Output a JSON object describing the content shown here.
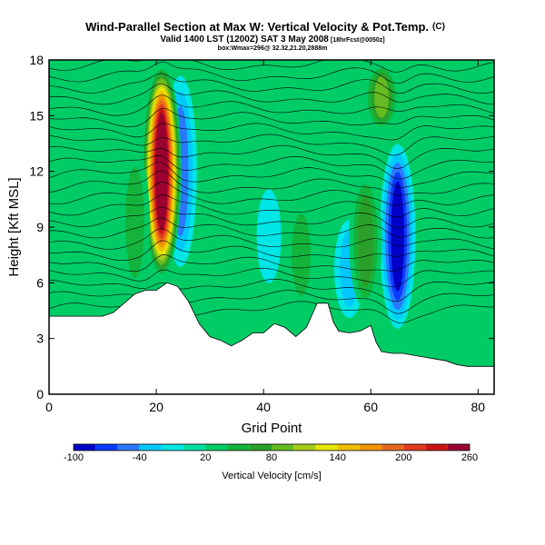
{
  "title": {
    "main": "Wind-Parallel Section at Max W: Vertical Velocity & Pot.Temp.",
    "copyright": "(C)",
    "valid": "Valid 1400 LST (1200Z) SAT 3 May 2008",
    "fcst": "[18hrFcst@0050z]",
    "location": "box:Wmax=296@ 32.32,21.20,2888m"
  },
  "chart_data": {
    "type": "heatmap",
    "title": "Wind-Parallel Section at Max W: Vertical Velocity & Pot.Temp.",
    "xlabel": "Grid Point",
    "ylabel": "Height [Kft MSL]",
    "xlim": [
      0,
      83
    ],
    "ylim": [
      0,
      18
    ],
    "xticks": [
      "0",
      "20",
      "40",
      "60",
      "80"
    ],
    "yticks": [
      "0",
      "3",
      "6",
      "9",
      "12",
      "15",
      "18"
    ],
    "xtick_values": [
      0,
      20,
      40,
      60,
      80
    ],
    "ytick_values": [
      0,
      3,
      6,
      9,
      12,
      15,
      18
    ],
    "colorbar": {
      "label": "Vertical Velocity [cm/s]",
      "tick_labels": [
        "-100",
        "-40",
        "20",
        "80",
        "140",
        "200",
        "260"
      ],
      "tick_values": [
        -100,
        -40,
        20,
        80,
        140,
        200,
        260
      ],
      "levels": [
        -100,
        -80,
        -60,
        -40,
        -20,
        0,
        20,
        40,
        60,
        80,
        100,
        120,
        140,
        160,
        180,
        200,
        220,
        240,
        260
      ],
      "colors": [
        "#0000c8",
        "#0a3cff",
        "#2a78ff",
        "#00c8ff",
        "#00e5e5",
        "#00e0a0",
        "#00cc66",
        "#14b43c",
        "#2aa02a",
        "#66bb22",
        "#a6cc1c",
        "#e6e600",
        "#f0c000",
        "#f09400",
        "#e86a1e",
        "#e23c1e",
        "#cc1414",
        "#9a0030"
      ]
    },
    "terrain_kft": [
      [
        0,
        4.2
      ],
      [
        10,
        4.2
      ],
      [
        12,
        4.4
      ],
      [
        14,
        4.9
      ],
      [
        16,
        5.4
      ],
      [
        18,
        5.6
      ],
      [
        20,
        5.6
      ],
      [
        22,
        6.0
      ],
      [
        24,
        5.8
      ],
      [
        26,
        5.0
      ],
      [
        28,
        3.8
      ],
      [
        30,
        3.1
      ],
      [
        32,
        2.9
      ],
      [
        34,
        2.6
      ],
      [
        36,
        2.9
      ],
      [
        38,
        3.3
      ],
      [
        40,
        3.3
      ],
      [
        42,
        3.8
      ],
      [
        44,
        3.6
      ],
      [
        46,
        3.1
      ],
      [
        48,
        3.6
      ],
      [
        50,
        4.9
      ],
      [
        52,
        4.9
      ],
      [
        53,
        3.9
      ],
      [
        54,
        3.4
      ],
      [
        56,
        3.3
      ],
      [
        58,
        3.4
      ],
      [
        60,
        3.7
      ],
      [
        61,
        2.8
      ],
      [
        62,
        2.3
      ],
      [
        64,
        2.2
      ],
      [
        66,
        2.2
      ],
      [
        68,
        2.1
      ],
      [
        70,
        2.0
      ],
      [
        72,
        1.9
      ],
      [
        74,
        1.8
      ],
      [
        76,
        1.6
      ],
      [
        78,
        1.5
      ],
      [
        80,
        1.5
      ],
      [
        82,
        1.5
      ],
      [
        83,
        1.5
      ]
    ],
    "updrafts": [
      {
        "x": 21,
        "z_bottom": 6.0,
        "z_top": 18.0,
        "w_max": 296
      },
      {
        "x": 47,
        "z_bottom": 4.0,
        "z_top": 11.0,
        "w_max": 45
      },
      {
        "x": 59,
        "z_bottom": 4.0,
        "z_top": 12.5,
        "w_max": 70
      },
      {
        "x": 62,
        "z_bottom": 14.0,
        "z_top": 18.0,
        "w_max": 90
      },
      {
        "x": 16,
        "z_bottom": 4.5,
        "z_top": 14.0,
        "w_max": 45
      },
      {
        "x": 9,
        "z_bottom": 4.2,
        "z_top": 17.0,
        "w_max": 30
      }
    ],
    "downdrafts": [
      {
        "x": 24.5,
        "z_bottom": 6.0,
        "z_top": 18.0,
        "w_min": -55
      },
      {
        "x": 65,
        "z_bottom": 3.0,
        "z_top": 14.0,
        "w_min": -100
      },
      {
        "x": 56,
        "z_bottom": 3.5,
        "z_top": 10.0,
        "w_min": -30
      },
      {
        "x": 41,
        "z_bottom": 5.0,
        "z_top": 12.0,
        "w_min": -15
      }
    ],
    "theta_contour_heights_kft": [
      4.6,
      5.2,
      5.8,
      6.4,
      7.0,
      7.6,
      8.2,
      8.8,
      9.4,
      10.0,
      10.6,
      11.2,
      11.8,
      12.4,
      13.0,
      13.6,
      14.2,
      14.8,
      15.4,
      16.0,
      16.6,
      17.2,
      17.8
    ]
  }
}
